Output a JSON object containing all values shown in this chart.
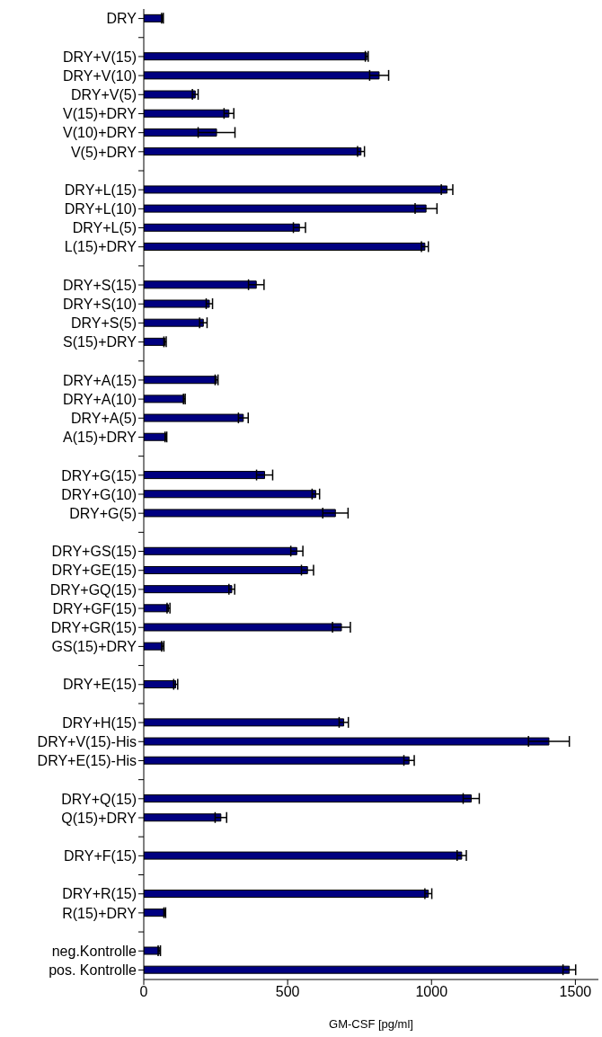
{
  "chart_data": {
    "type": "bar",
    "orientation": "horizontal",
    "xlabel": "GM-CSF [pg/ml]",
    "categories": [
      "DRY",
      null,
      "DRY+V(15)",
      "DRY+V(10)",
      "DRY+V(5)",
      "V(15)+DRY",
      "V(10)+DRY",
      "V(5)+DRY",
      null,
      "DRY+L(15)",
      "DRY+L(10)",
      "DRY+L(5)",
      "L(15)+DRY",
      null,
      "DRY+S(15)",
      "DRY+S(10)",
      "DRY+S(5)",
      "S(15)+DRY",
      null,
      "DRY+A(15)",
      "DRY+A(10)",
      "DRY+A(5)",
      "A(15)+DRY",
      null,
      "DRY+G(15)",
      "DRY+G(10)",
      "DRY+G(5)",
      null,
      "DRY+GS(15)",
      "DRY+GE(15)",
      "DRY+GQ(15)",
      "DRY+GF(15)",
      "DRY+GR(15)",
      "GS(15)+DRY",
      null,
      "DRY+E(15)",
      null,
      "DRY+H(15)",
      "DRY+V(15)-His",
      "DRY+E(15)-His",
      null,
      "DRY+Q(15)",
      "Q(15)+DRY",
      null,
      "DRY+F(15)",
      null,
      "DRY+R(15)",
      "R(15)+DRY",
      null,
      "neg.Kontrolle",
      "pos. Kontrolle"
    ],
    "values": [
      65,
      null,
      775,
      818,
      179,
      296,
      253,
      755,
      null,
      1054,
      981,
      541,
      977,
      null,
      391,
      228,
      207,
      74,
      null,
      253,
      141,
      346,
      77,
      null,
      420,
      598,
      666,
      null,
      532,
      569,
      306,
      86,
      687,
      66,
      null,
      111,
      null,
      695,
      1408,
      922,
      null,
      1138,
      268,
      null,
      1105,
      null,
      989,
      73,
      null,
      54,
      1479
    ],
    "errors": [
      3,
      null,
      5,
      33,
      10,
      17,
      64,
      12,
      null,
      20,
      38,
      21,
      12,
      null,
      27,
      11,
      13,
      4,
      null,
      5,
      3,
      17,
      3,
      null,
      28,
      13,
      44,
      null,
      21,
      21,
      10,
      5,
      31,
      4,
      null,
      7,
      null,
      16,
      71,
      18,
      null,
      28,
      20,
      null,
      16,
      null,
      12,
      3,
      null,
      4,
      22
    ],
    "color": "#000080",
    "xlim": [
      0,
      1580
    ],
    "xticks": [
      0,
      500,
      1000,
      1500
    ]
  }
}
